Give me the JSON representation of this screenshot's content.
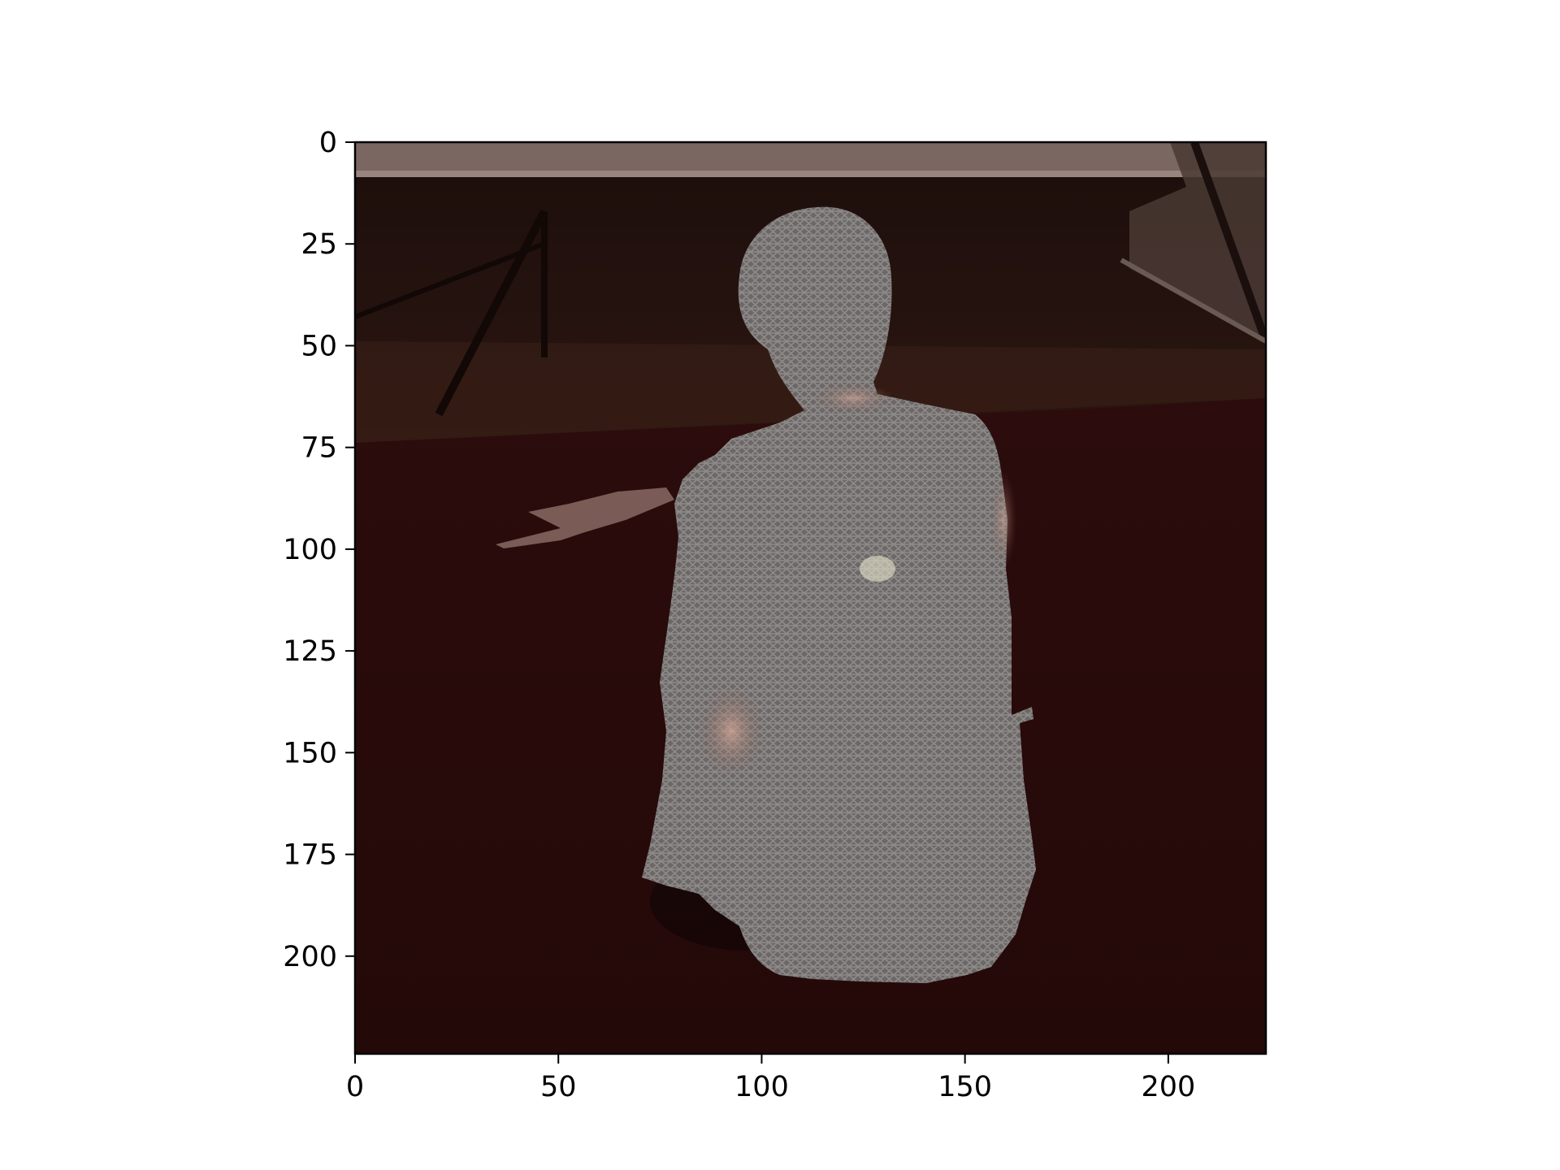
{
  "image": {
    "description_icon": "person-body-mesh-overlay-icon",
    "colors": {
      "floor": "#2a0a0a",
      "wall": "#1a0e0b",
      "ceiling_band": "#7d6a64",
      "mesh": "#6f6a69",
      "mesh_line": "#8f8b8a",
      "skin_hint": "#b48a7e"
    }
  },
  "axes": {
    "x_ticks": [
      "0",
      "50",
      "100",
      "150",
      "200"
    ],
    "y_ticks": [
      "0",
      "25",
      "50",
      "75",
      "100",
      "125",
      "150",
      "175",
      "200"
    ],
    "xlim": [
      0,
      224
    ],
    "ylim": [
      224,
      0
    ]
  }
}
